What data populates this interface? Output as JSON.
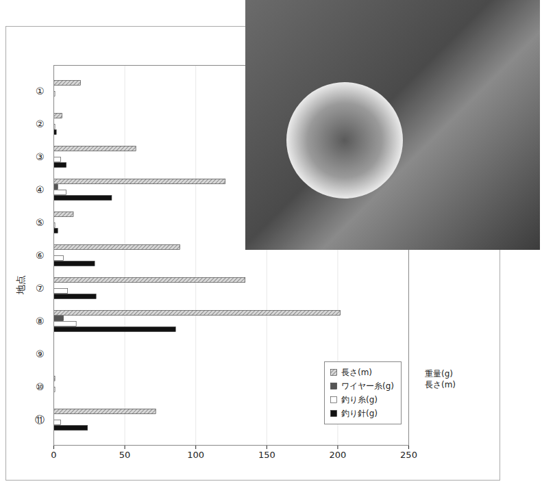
{
  "chart_data": {
    "type": "bar",
    "orientation": "horizontal",
    "categories": [
      "①",
      "②",
      "③",
      "④",
      "⑤",
      "⑥",
      "⑦",
      "⑧",
      "⑨",
      "⑩",
      "⑪"
    ],
    "series": [
      {
        "name": "長さ(m)",
        "color": "#8c8c8c",
        "values": [
          19,
          6,
          58,
          121,
          14,
          89,
          135,
          202,
          0,
          1,
          72
        ]
      },
      {
        "name": "ワイヤー糸(g)",
        "color": "#555555",
        "values": [
          0,
          0,
          0,
          3,
          0,
          0,
          0,
          7,
          0,
          0,
          0
        ]
      },
      {
        "name": "釣り糸(g)",
        "color": "#ffffff",
        "values": [
          1,
          1,
          5,
          9,
          1,
          7,
          10,
          16,
          0,
          1,
          5
        ]
      },
      {
        "name": "釣り針(g)",
        "color": "#111111",
        "values": [
          0,
          2,
          9,
          41,
          3,
          29,
          30,
          86,
          0,
          0,
          24
        ]
      }
    ],
    "x_label": "重量(g)\n長さ(m)",
    "y_label": "地点",
    "xlim": [
      0,
      250
    ],
    "xticks": [
      0,
      50,
      100,
      150,
      200,
      250
    ],
    "grid": true,
    "legend": "lower right"
  }
}
